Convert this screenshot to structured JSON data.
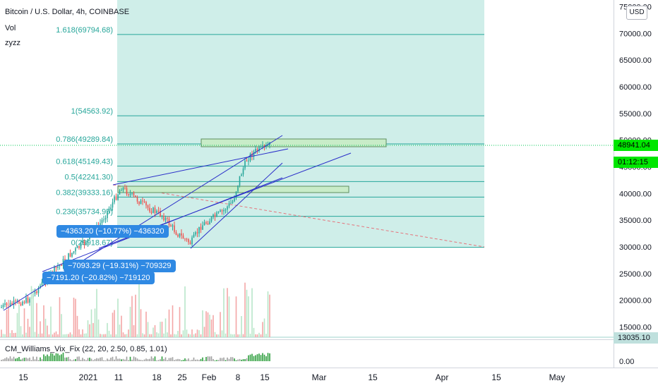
{
  "header": {
    "title": "Bitcoin / U.S. Dollar, 4h, COINBASE",
    "indicators": [
      "Vol",
      "zyzz"
    ],
    "currency_button": "USD"
  },
  "fib": [
    {
      "label": "1.618(69794.68)",
      "price": 69794.68
    },
    {
      "label": "1(54563.92)",
      "price": 54563.92
    },
    {
      "label": "0.786(49289.84)",
      "price": 49289.84
    },
    {
      "label": "0.618(45149.43)",
      "price": 45149.43
    },
    {
      "label": "0.5(42241.30)",
      "price": 42241.3
    },
    {
      "label": "0.382(39333.16)",
      "price": 39333.16
    },
    {
      "label": "0.236(35734.95)",
      "price": 35734.95
    },
    {
      "label": "0(29918.67)",
      "price": 29918.67
    }
  ],
  "price_axis": [
    "75000.00",
    "70000.00",
    "65000.00",
    "60000.00",
    "55000.00",
    "50000.00",
    "45000.00",
    "40000.00",
    "35000.00",
    "30000.00",
    "25000.00",
    "20000.00",
    "15000.00"
  ],
  "current_price": "48941.04",
  "countdown": "01:12:15",
  "volume_level": "13035.10",
  "measurements": [
    "−4363.20 (−10.77%) −436320",
    "−7093.29 (−19.31%) −709329",
    "−7191.20 (−20.82%) −719120"
  ],
  "indicator_pane": {
    "label": "CM_Williams_Vix_Fix (22, 20, 2.50, 0.85, 1.01)",
    "axis_label": "0.00"
  },
  "time_axis": [
    "15",
    "2021",
    "11",
    "18",
    "25",
    "Feb",
    "8",
    "15",
    "Mar",
    "15",
    "Apr",
    "15",
    "May"
  ],
  "colors": {
    "fib_fill": "#cfeee9",
    "fib_line": "#26a69a",
    "trendline": "#2a2ec9",
    "current_price_bg": "#00e600",
    "measure_bg": "#2f89e3",
    "volume_bar": "#f3a6a6",
    "volume_bar_down": "#b8e6c9",
    "zone_fill": "#c8ecc8"
  }
}
